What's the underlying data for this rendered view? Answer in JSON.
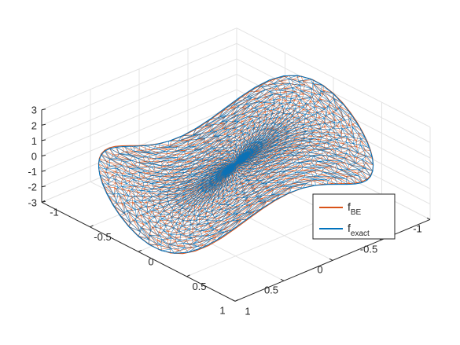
{
  "chart_data": {
    "type": "surface-mesh-3d",
    "title": "",
    "xlabel": "",
    "ylabel": "",
    "zlabel": "",
    "xlim": [
      -1,
      1
    ],
    "ylim": [
      -1,
      1
    ],
    "zlim": [
      -3,
      3
    ],
    "grid": true,
    "domain": "unit disk",
    "x_ticks": [
      "-1",
      "-0.5",
      "0",
      "0.5",
      "1"
    ],
    "y_ticks": [
      "-1",
      "-0.5",
      "0",
      "0.5",
      "1"
    ],
    "z_ticks": [
      "-3",
      "-2",
      "-1",
      "0",
      "1",
      "2",
      "3"
    ],
    "legend_placement": "lower-right",
    "series": [
      {
        "name_base": "f",
        "name_sub": "BE",
        "color": "#D95319",
        "style": "triangulated mesh",
        "peak": 2.3,
        "trough": -2.3
      },
      {
        "name_base": "f",
        "name_sub": "exact",
        "color": "#0072BD",
        "style": "triangulated mesh",
        "peak": 2.3,
        "trough": -2.3
      }
    ]
  }
}
